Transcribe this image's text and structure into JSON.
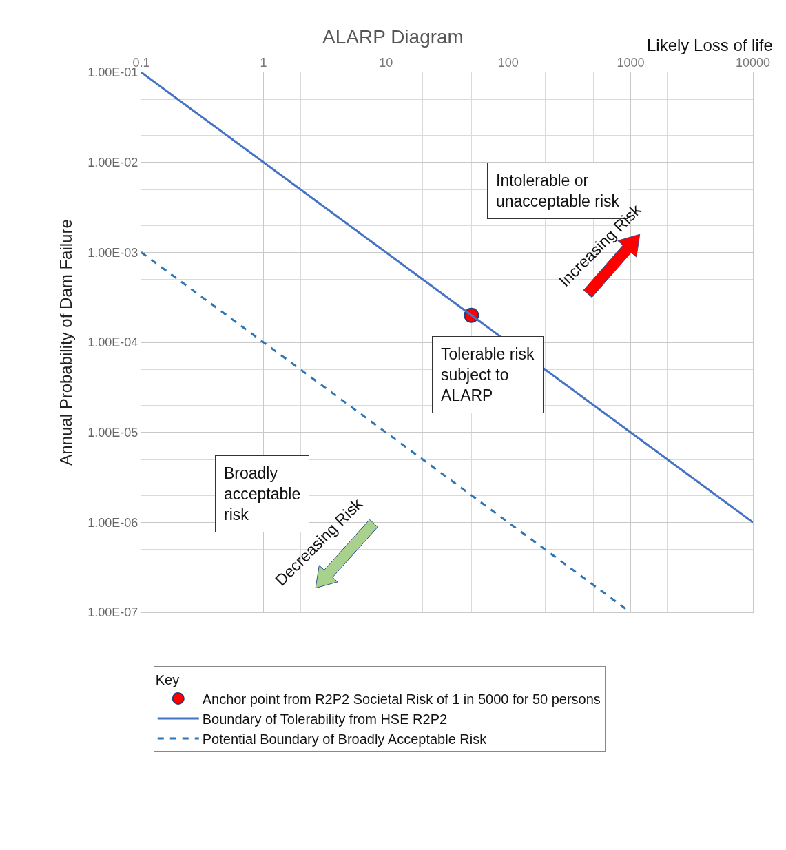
{
  "chart_data": {
    "type": "line",
    "title": "ALARP Diagram",
    "xlabel": "Likely Loss of life",
    "ylabel": "Annual Probability of Dam Failure",
    "legend_title": "Key",
    "log": "xy",
    "grid": true,
    "legend": "bottom",
    "xlim": [
      0.1,
      10000
    ],
    "xticks": [
      0.1,
      1,
      10,
      100,
      1000,
      10000
    ],
    "ylim": [
      1e-07,
      0.1
    ],
    "yticks": [
      {
        "value": 1e-07,
        "label": "1.00E-07"
      },
      {
        "value": 1e-06,
        "label": "1.00E-06"
      },
      {
        "value": 1e-05,
        "label": "1.00E-05"
      },
      {
        "value": 0.0001,
        "label": "1.00E-04"
      },
      {
        "value": 0.001,
        "label": "1.00E-03"
      },
      {
        "value": 0.01,
        "label": "1.00E-02"
      },
      {
        "value": 0.1,
        "label": "1.00E-01"
      }
    ],
    "series": [
      {
        "name": "Anchor point from R2P2 Societal Risk of 1 in 5000 for 50 persons",
        "type": "scatter",
        "marker": "circle",
        "color": "#ff0000",
        "x": [
          50
        ],
        "values": [
          0.0002
        ]
      },
      {
        "name": "Boundary of Tolerability from HSE R2P2",
        "line_style": "solid",
        "color": "#4472c4",
        "x": [
          0.1,
          10000
        ],
        "values": [
          0.1,
          1e-06
        ]
      },
      {
        "name": "Potential Boundary of Broadly Acceptable Risk",
        "line_style": "dashed",
        "color": "#2e75b6",
        "x": [
          0.1,
          1000
        ],
        "values": [
          0.001,
          1e-07
        ]
      }
    ],
    "annotations": [
      "Intolerable or\nunacceptable risk",
      "Tolerable risk\nsubject to\nALARP",
      "Broadly\nacceptable\nrisk",
      "Increasing Risk",
      "Decreasing Risk"
    ]
  }
}
